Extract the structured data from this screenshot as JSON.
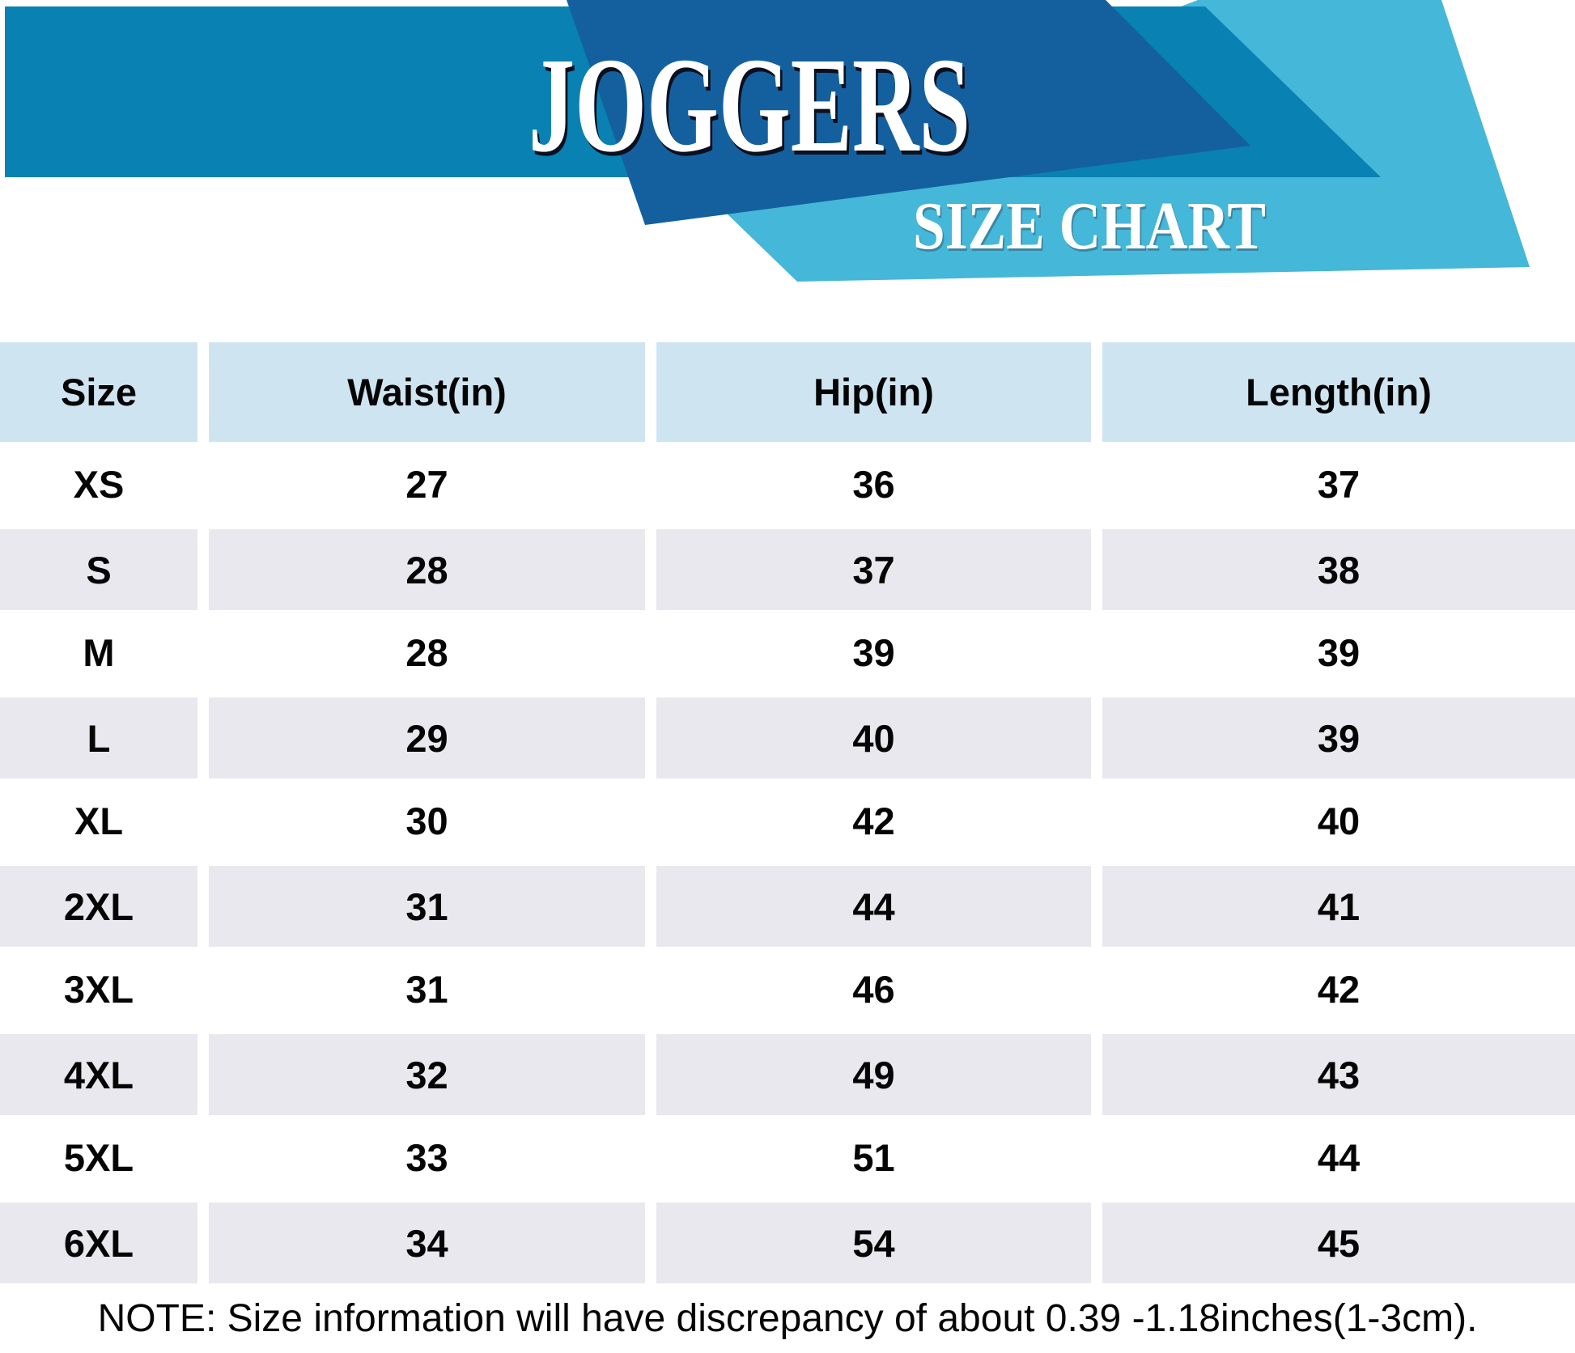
{
  "banner": {
    "title": "JOGGERS",
    "subtitle": "SIZE CHART"
  },
  "chart_data": {
    "type": "table",
    "title": "JOGGERS SIZE CHART",
    "columns": [
      "Size",
      "Waist(in)",
      "Hip(in)",
      "Length(in)"
    ],
    "rows": [
      [
        "XS",
        "27",
        "36",
        "37"
      ],
      [
        "S",
        "28",
        "37",
        "38"
      ],
      [
        "M",
        "28",
        "39",
        "39"
      ],
      [
        "L",
        "29",
        "40",
        "39"
      ],
      [
        "XL",
        "30",
        "42",
        "40"
      ],
      [
        "2XL",
        "31",
        "44",
        "41"
      ],
      [
        "3XL",
        "31",
        "46",
        "42"
      ],
      [
        "4XL",
        "32",
        "49",
        "43"
      ],
      [
        "5XL",
        "33",
        "51",
        "44"
      ],
      [
        "6XL",
        "34",
        "54",
        "45"
      ]
    ]
  },
  "note": "NOTE: Size information will have discrepancy of about 0.39 -1.18inches(1-3cm).",
  "colors": {
    "banner_medium": "#0981b2",
    "banner_dark": "#14609f",
    "banner_light": "#45b7d8",
    "header_bg": "#cfe4f1",
    "row_gray": "#e9e8ee",
    "row_white": "#ffffff",
    "text": "#050505"
  }
}
